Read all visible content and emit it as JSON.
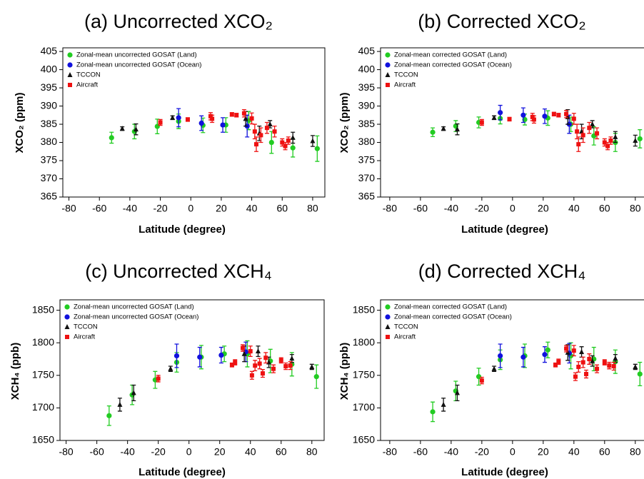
{
  "chart_data": [
    {
      "type": "scatter",
      "title": "(a) Uncorrected XCO₂",
      "xlabel": "Latitude (degree)",
      "ylabel": "XCO₂ (ppm)",
      "xlim": [
        -84,
        88
      ],
      "ylim": [
        365,
        406
      ],
      "xticks": [
        -80,
        -60,
        -40,
        -20,
        0,
        20,
        40,
        60,
        80
      ],
      "yticks": [
        365,
        370,
        375,
        380,
        385,
        390,
        395,
        400,
        405
      ],
      "legend": "upper left",
      "series": [
        {
          "name": "Zonal-mean uncorrected GOSAT (Land)",
          "color": "#22cc22",
          "marker": "circle",
          "x": [
            -52,
            -37,
            -22,
            -8,
            8,
            23,
            38,
            53,
            67,
            83
          ],
          "values": [
            381.3,
            383,
            384.4,
            385.8,
            384.7,
            384.8,
            386,
            380,
            378.5,
            378.3
          ],
          "errors": [
            1.5,
            2,
            2,
            2,
            2,
            2,
            2.5,
            3,
            2.5,
            3.5
          ]
        },
        {
          "name": "Zonal-mean uncorrected GOSAT (Ocean)",
          "color": "#1111dd",
          "marker": "circle",
          "x": [
            -8,
            7,
            21,
            37
          ],
          "values": [
            386.8,
            385.3,
            384.8,
            384.5
          ],
          "errors": [
            2.5,
            2,
            2,
            3
          ]
        },
        {
          "name": "TCCON",
          "color": "#111111",
          "marker": "triangle",
          "x": [
            -45,
            -36,
            -12,
            36,
            45,
            52,
            67,
            80
          ],
          "values": [
            383.8,
            383.6,
            386.8,
            386.5,
            382.5,
            385,
            381.3,
            380.4
          ],
          "errors": [
            0.5,
            1.5,
            0.5,
            2,
            2,
            1,
            1.5,
            1.5
          ]
        },
        {
          "name": "Aircraft",
          "color": "#ee1111",
          "marker": "square",
          "x": [
            -20,
            -2,
            13,
            14,
            27,
            30,
            35,
            40,
            42,
            43,
            46,
            50,
            55,
            60,
            62,
            64
          ],
          "values": [
            385.5,
            386.3,
            387.2,
            386.5,
            387.7,
            387.5,
            388,
            386.6,
            383,
            379.5,
            382,
            384,
            383,
            380,
            379,
            380.5
          ],
          "errors": [
            0.8,
            0.5,
            1,
            1,
            0.5,
            0.5,
            1,
            1.5,
            2,
            2,
            2,
            1.5,
            1.5,
            1,
            1,
            1
          ]
        }
      ]
    },
    {
      "type": "scatter",
      "title": "(b) Corrected XCO₂",
      "xlabel": "Latitude (degree)",
      "ylabel": "XCO₂ (ppm)",
      "xlim": [
        -86,
        88
      ],
      "ylim": [
        365,
        406
      ],
      "xticks": [
        -80,
        -60,
        -40,
        -20,
        0,
        20,
        40,
        60,
        80
      ],
      "yticks": [
        365,
        370,
        375,
        380,
        385,
        390,
        395,
        400,
        405
      ],
      "legend": "upper left",
      "series": [
        {
          "name": "Zonal-mean corrected GOSAT (Land)",
          "color": "#22cc22",
          "marker": "circle",
          "x": [
            -52,
            -37,
            -22,
            -8,
            8,
            23,
            38,
            53,
            67,
            83
          ],
          "values": [
            382.8,
            384.5,
            385.5,
            386.6,
            386.3,
            386.7,
            385,
            381.8,
            380,
            381
          ],
          "errors": [
            1.2,
            1.5,
            1.5,
            1.5,
            1.5,
            2,
            2,
            2.5,
            2.5,
            2.5
          ]
        },
        {
          "name": "Zonal-mean corrected GOSAT (Ocean)",
          "color": "#1111dd",
          "marker": "circle",
          "x": [
            -8,
            7,
            21,
            37
          ],
          "values": [
            388.2,
            387.5,
            387.2,
            385
          ],
          "errors": [
            2,
            2,
            2,
            2.5
          ]
        },
        {
          "name": "TCCON",
          "color": "#111111",
          "marker": "triangle",
          "x": [
            -45,
            -36,
            -12,
            36,
            45,
            52,
            67,
            80
          ],
          "values": [
            383.8,
            383.6,
            386.8,
            387,
            383,
            385,
            381.5,
            380.5
          ],
          "errors": [
            0.5,
            1.5,
            0.5,
            2,
            2,
            1,
            1.5,
            1.5
          ]
        },
        {
          "name": "Aircraft",
          "color": "#ee1111",
          "marker": "square",
          "x": [
            -20,
            -2,
            13,
            14,
            27,
            30,
            35,
            40,
            42,
            43,
            46,
            50,
            55,
            60,
            62,
            64
          ],
          "values": [
            385.5,
            386.4,
            387,
            386.3,
            387.8,
            387.5,
            387.8,
            386.5,
            383,
            379.5,
            382,
            384,
            382.5,
            380,
            379,
            380.5
          ],
          "errors": [
            0.8,
            0.5,
            1,
            1,
            0.5,
            0.5,
            1,
            1.5,
            2,
            2,
            2,
            1.5,
            1.5,
            1,
            1,
            1
          ]
        }
      ]
    },
    {
      "type": "scatter",
      "title": "(c) Uncorrected XCH₄",
      "xlabel": "Latitude (degree)",
      "ylabel": "XCH₄ (ppb)",
      "xlim": [
        -84,
        88
      ],
      "ylim": [
        1650,
        1866
      ],
      "xticks": [
        -80,
        -60,
        -40,
        -20,
        0,
        20,
        40,
        60,
        80
      ],
      "yticks": [
        1650,
        1700,
        1750,
        1800,
        1850
      ],
      "legend": "upper left",
      "series": [
        {
          "name": "Zonal-mean uncorrected GOSAT (Land)",
          "color": "#22cc22",
          "marker": "circle",
          "x": [
            -52,
            -37,
            -22,
            -8,
            8,
            23,
            38,
            53,
            67,
            83
          ],
          "values": [
            1688,
            1720,
            1743,
            1770,
            1778,
            1783,
            1783,
            1772,
            1767,
            1748
          ],
          "errors": [
            15,
            15,
            13,
            15,
            18,
            12,
            20,
            18,
            18,
            18
          ]
        },
        {
          "name": "Zonal-mean uncorrected GOSAT (Ocean)",
          "color": "#1111dd",
          "marker": "circle",
          "x": [
            -8,
            7,
            21,
            37
          ],
          "values": [
            1780,
            1778,
            1781,
            1786
          ],
          "errors": [
            18,
            15,
            12,
            15
          ]
        },
        {
          "name": "TCCON",
          "color": "#111111",
          "marker": "triangle",
          "x": [
            -45,
            -36,
            -12,
            36,
            45,
            52,
            67,
            80
          ],
          "values": [
            1705,
            1723,
            1760,
            1783,
            1787,
            1770,
            1776,
            1763
          ],
          "errors": [
            10,
            12,
            4,
            12,
            8,
            8,
            6,
            4
          ]
        },
        {
          "name": "Aircraft",
          "color": "#ee1111",
          "marker": "square",
          "x": [
            -20,
            28,
            30,
            35,
            40,
            41,
            43,
            46,
            48,
            50,
            55,
            60,
            63,
            66
          ],
          "values": [
            1745,
            1766,
            1770,
            1792,
            1787,
            1750,
            1765,
            1768,
            1753,
            1777,
            1760,
            1773,
            1764,
            1765
          ],
          "errors": [
            5,
            3,
            4,
            5,
            8,
            6,
            8,
            8,
            6,
            8,
            6,
            4,
            5,
            6
          ]
        }
      ]
    },
    {
      "type": "scatter",
      "title": "(d) Corrected XCH₄",
      "xlabel": "Latitude (degree)",
      "ylabel": "XCH₄ (ppb)",
      "xlim": [
        -86,
        88
      ],
      "ylim": [
        1650,
        1866
      ],
      "xticks": [
        -80,
        -60,
        -40,
        -20,
        0,
        20,
        40,
        60,
        80
      ],
      "yticks": [
        1650,
        1700,
        1750,
        1800,
        1850
      ],
      "legend": "upper left",
      "series": [
        {
          "name": "Zonal-mean corrected GOSAT (Land)",
          "color": "#22cc22",
          "marker": "circle",
          "x": [
            -52,
            -37,
            -22,
            -8,
            8,
            23,
            38,
            53,
            67,
            83
          ],
          "values": [
            1694,
            1726,
            1748,
            1774,
            1780,
            1789,
            1780,
            1775,
            1771,
            1752
          ],
          "errors": [
            15,
            15,
            13,
            15,
            18,
            12,
            20,
            18,
            18,
            18
          ]
        },
        {
          "name": "Zonal-mean corrected GOSAT (Ocean)",
          "color": "#1111dd",
          "marker": "circle",
          "x": [
            -8,
            7,
            21,
            37
          ],
          "values": [
            1780,
            1778,
            1782,
            1784
          ],
          "errors": [
            18,
            15,
            12,
            15
          ]
        },
        {
          "name": "TCCON",
          "color": "#111111",
          "marker": "triangle",
          "x": [
            -45,
            -36,
            -12,
            36,
            45,
            52,
            67,
            80
          ],
          "values": [
            1705,
            1723,
            1760,
            1785,
            1786,
            1772,
            1776,
            1763
          ],
          "errors": [
            10,
            12,
            4,
            12,
            8,
            8,
            6,
            4
          ]
        },
        {
          "name": "Aircraft",
          "color": "#ee1111",
          "marker": "square",
          "x": [
            -20,
            28,
            30,
            35,
            40,
            41,
            43,
            46,
            48,
            50,
            55,
            60,
            63,
            66
          ],
          "values": [
            1742,
            1766,
            1771,
            1791,
            1788,
            1748,
            1763,
            1770,
            1752,
            1775,
            1760,
            1770,
            1765,
            1764
          ],
          "errors": [
            5,
            3,
            4,
            5,
            8,
            6,
            8,
            8,
            6,
            8,
            6,
            4,
            5,
            6
          ]
        }
      ]
    }
  ]
}
